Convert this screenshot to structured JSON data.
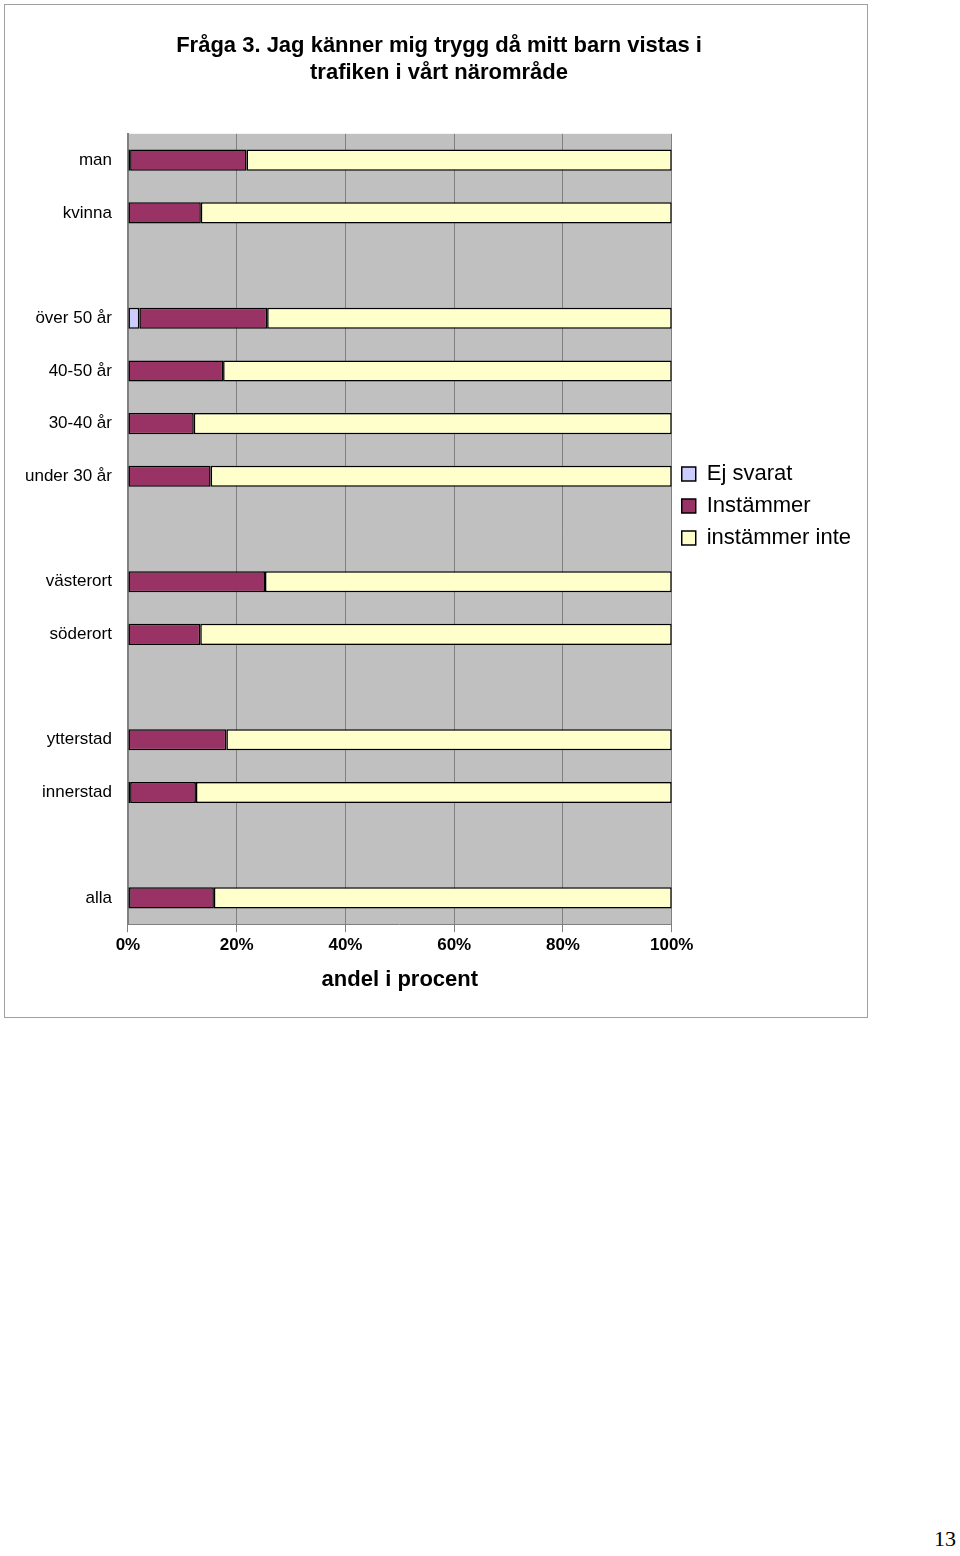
{
  "chart_data": {
    "type": "bar",
    "orientation": "horizontal",
    "stacked": true,
    "title": [
      "Fråga 3. Jag känner mig trygg då mitt barn vistas i",
      "trafiken i vårt närområde"
    ],
    "x_label": "andel i procent",
    "categories": [
      "man",
      "kvinna",
      null,
      "över 50 år",
      "40-50 år",
      "30-40 år",
      "under 30 år",
      null,
      "västerort",
      "söderort",
      null,
      "ytterstad",
      "innerstad",
      null,
      "alla"
    ],
    "series": [
      {
        "name": "Ej svarat",
        "color": "#ccccff",
        "values": [
          0.4,
          0,
          null,
          2.1,
          0,
          0,
          0,
          null,
          0,
          0,
          null,
          0,
          0.4,
          null,
          0.2
        ]
      },
      {
        "name": "Instämmer",
        "color": "#993366",
        "values": [
          21.4,
          13.4,
          null,
          23.5,
          17.5,
          12.1,
          15.2,
          null,
          25.2,
          13.3,
          null,
          18.1,
          12.1,
          null,
          15.6
        ]
      },
      {
        "name": "instämmer inte",
        "color": "#ffffcc",
        "values": [
          78.2,
          86.6,
          null,
          74.4,
          82.5,
          87.9,
          84.8,
          null,
          74.8,
          86.7,
          null,
          81.9,
          87.5,
          null,
          84.2
        ]
      }
    ],
    "xlim": [
      0,
      100
    ],
    "xticks": [
      {
        "value": 0,
        "label": "0%"
      },
      {
        "value": 20,
        "label": "20%"
      },
      {
        "value": 40,
        "label": "40%"
      },
      {
        "value": 60,
        "label": "60%"
      },
      {
        "value": 80,
        "label": "80%"
      },
      {
        "value": 100,
        "label": "100%"
      }
    ],
    "grid": true,
    "legend": "right"
  },
  "page_number": "13"
}
